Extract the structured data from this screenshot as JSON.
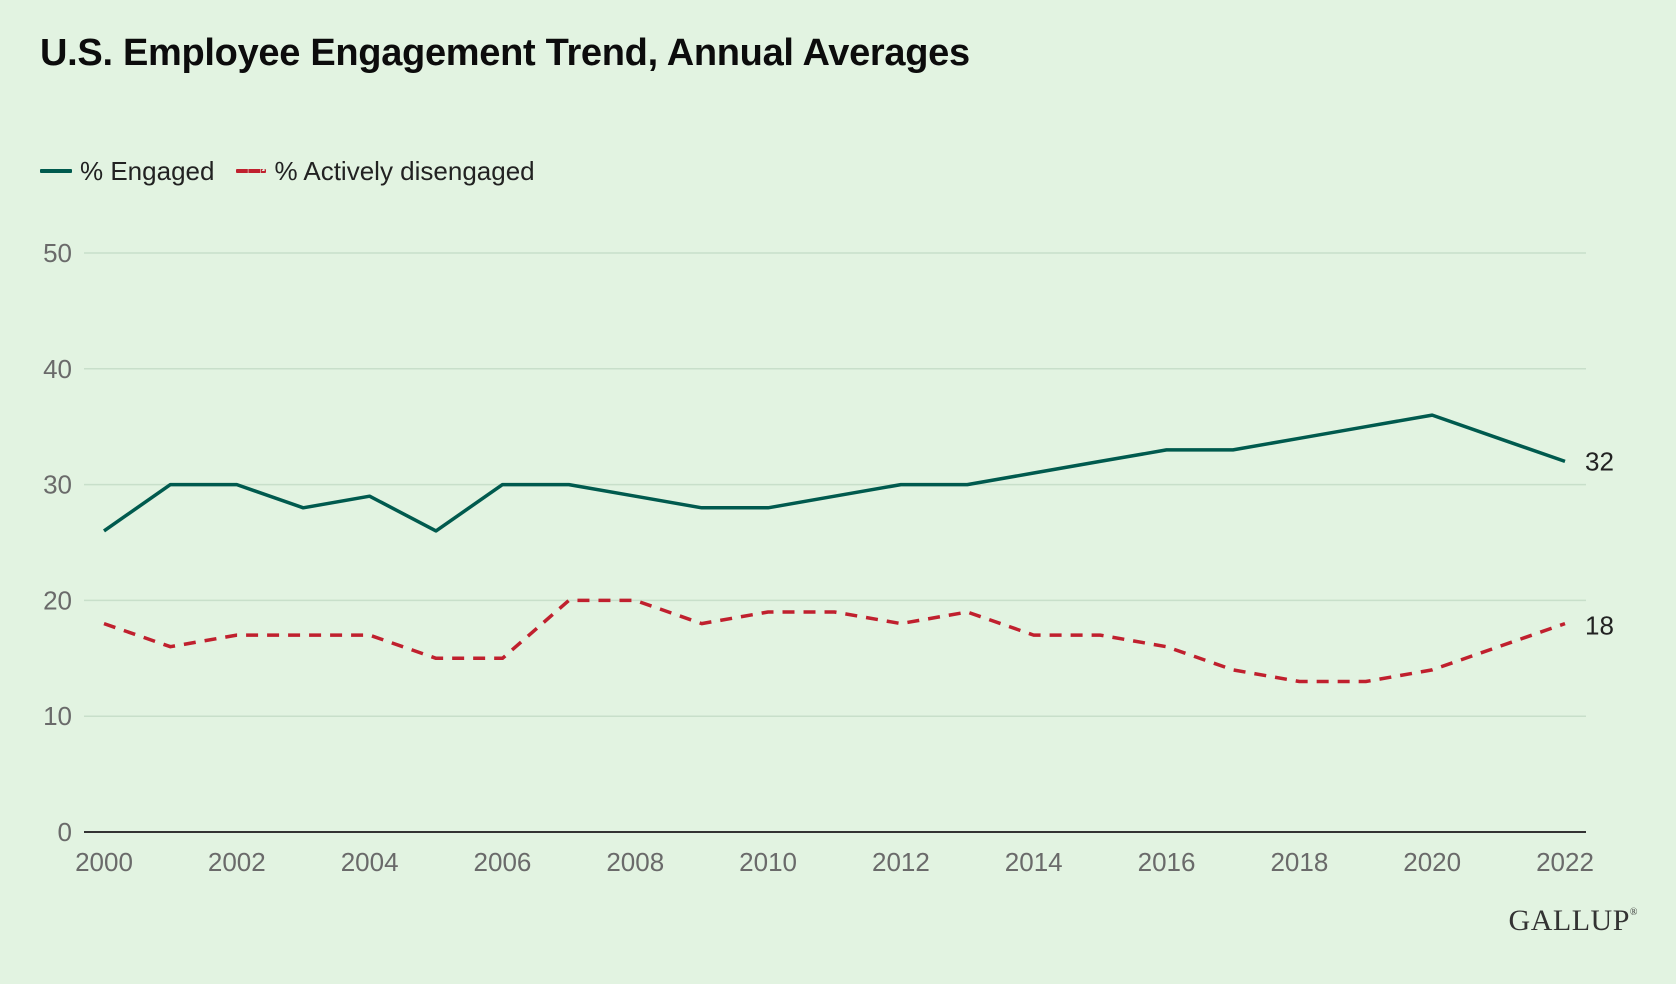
{
  "title": "U.S. Employee Engagement Trend, Annual Averages",
  "logo": "GALLUP",
  "colors": {
    "background": "#e2f3e1",
    "engaged": "#005a4e",
    "disengaged": "#c0202e",
    "grid": "#c8dfca",
    "axis": "#333333",
    "tick_text": "#6a6a6a",
    "end_label": "#222222"
  },
  "chart_data": {
    "type": "line",
    "x": [
      2000,
      2001,
      2002,
      2003,
      2004,
      2005,
      2006,
      2007,
      2008,
      2009,
      2010,
      2011,
      2012,
      2013,
      2014,
      2015,
      2016,
      2017,
      2018,
      2019,
      2020,
      2021,
      2022
    ],
    "xticks": [
      2000,
      2002,
      2004,
      2006,
      2008,
      2010,
      2012,
      2014,
      2016,
      2018,
      2020,
      2022
    ],
    "xtick_labels": [
      "2000",
      "2002",
      "2004",
      "2006",
      "2008",
      "2010",
      "2012",
      "2014",
      "2016",
      "2018",
      "2020",
      "2022"
    ],
    "xlim": [
      2000,
      2022
    ],
    "ylim": [
      0,
      50
    ],
    "yticks": [
      0,
      10,
      20,
      30,
      40,
      50
    ],
    "ytick_labels": [
      "0",
      "10",
      "20",
      "30",
      "40",
      "50"
    ],
    "grid": true,
    "legend_position": "top-left",
    "series": [
      {
        "name": "% Engaged",
        "style": "solid",
        "color": "#005a4e",
        "values": [
          26,
          30,
          30,
          28,
          29,
          26,
          30,
          30,
          29,
          28,
          28,
          29,
          30,
          30,
          31,
          32,
          33,
          33,
          34,
          35,
          36,
          34,
          32
        ],
        "end_label": "32"
      },
      {
        "name": "% Actively disengaged",
        "style": "dashed",
        "color": "#c0202e",
        "values": [
          18,
          16,
          17,
          17,
          17,
          15,
          15,
          20,
          20,
          18,
          19,
          19,
          18,
          19,
          17,
          17,
          16,
          14,
          13,
          13,
          14,
          16,
          18
        ],
        "end_label": "18"
      }
    ]
  }
}
